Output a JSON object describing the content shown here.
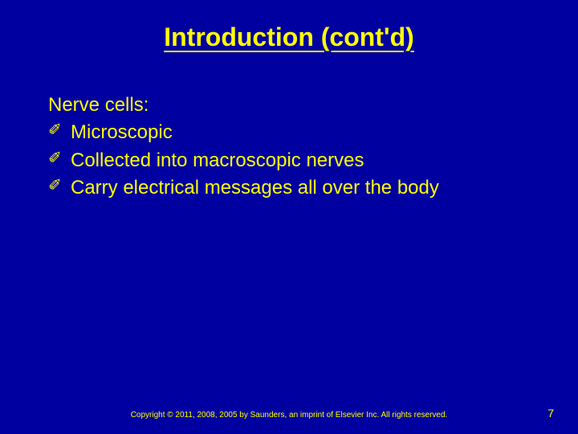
{
  "slide": {
    "background_color": "#0000a0",
    "text_color": "#ffff00",
    "title": "Introduction (cont'd)",
    "title_fontsize": 32,
    "title_underline": true,
    "lead_text": "Nerve cells:",
    "body_fontsize": 24,
    "bullet_glyph": "✐",
    "bullets": [
      {
        "text": "Microscopic"
      },
      {
        "text": "Collected into macroscopic nerves"
      },
      {
        "text": "Carry electrical messages all over the body"
      }
    ],
    "copyright": "Copyright © 2011, 2008, 2005 by Saunders, an imprint of Elsevier Inc. All rights reserved.",
    "copyright_fontsize": 10,
    "page_number": "7",
    "page_number_fontsize": 14
  }
}
